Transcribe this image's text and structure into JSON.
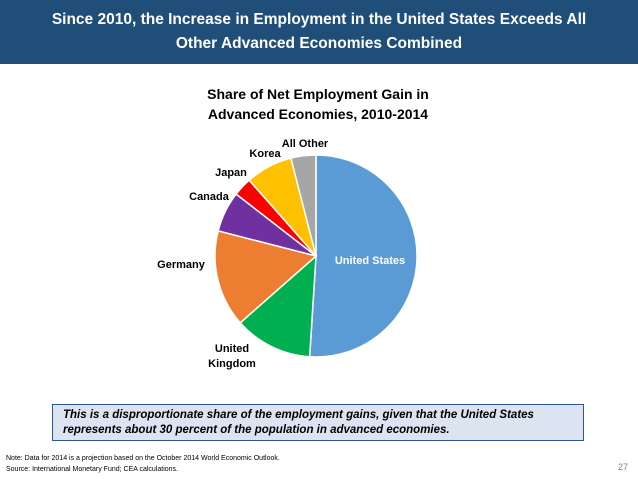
{
  "header": {
    "title_line1": "Since 2010, the Increase in Employment in the United States Exceeds All",
    "title_line2": "Other Advanced Economies Combined"
  },
  "chart_data": {
    "type": "pie",
    "title_line1": "Share of Net Employment Gain in",
    "title_line2": "Advanced Economies, 2010-2014",
    "slices": [
      {
        "label": "United States",
        "value": 51.0,
        "color": "#5b9bd5"
      },
      {
        "label": "United Kingdom",
        "value": 12.5,
        "color": "#00b050"
      },
      {
        "label": "Germany",
        "value": 15.5,
        "color": "#ed7d31"
      },
      {
        "label": "Canada",
        "value": 6.5,
        "color": "#7030a0"
      },
      {
        "label": "Japan",
        "value": 3.0,
        "color": "#ff0000"
      },
      {
        "label": "Korea",
        "value": 7.5,
        "color": "#ffc000"
      },
      {
        "label": "All Other",
        "value": 4.0,
        "color": "#a6a6a6"
      }
    ],
    "start_angle_deg": 0,
    "direction": "clockwise"
  },
  "callout": {
    "line1": "This is a disproportionate share of the employment gains, given that the United States",
    "line2": "represents about 30 percent of the population in advanced economies."
  },
  "footnote": {
    "note": "Note: Data for 2014 is a projection based on the October 2014 World Economic Outlook.",
    "source": "Source: International Monetary Fund; CEA calculations."
  },
  "page_number": "27"
}
